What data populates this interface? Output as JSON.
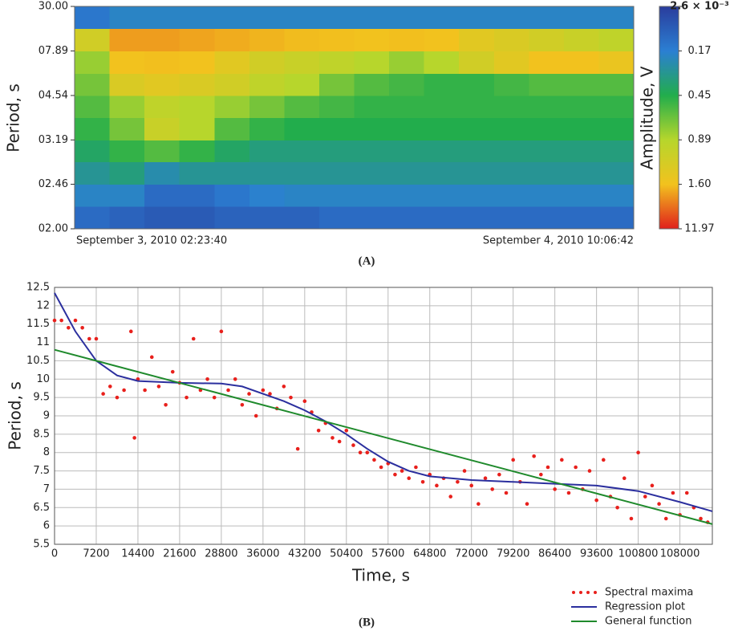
{
  "chart_data": [
    {
      "type": "heatmap",
      "panel": "(A)",
      "ylabel": "Period, s",
      "yscale": "reciprocal",
      "ylim": [
        2,
        30
      ],
      "yticks": [
        {
          "value": 30,
          "label": "30.00"
        },
        {
          "value": 7.89,
          "label": "07.89"
        },
        {
          "value": 4.54,
          "label": "04.54"
        },
        {
          "value": 3.19,
          "label": "03.19"
        },
        {
          "value": 2.46,
          "label": "02.46"
        },
        {
          "value": 2,
          "label": "02.00"
        }
      ],
      "x_start": "September 3, 2010 02:23:40",
      "x_end": "September 4, 2010 10:06:42",
      "ybins": [
        2,
        2.21,
        2.46,
        2.78,
        3.19,
        3.75,
        4.54,
        5.76,
        7.89,
        12.5,
        30
      ],
      "z": [
        [
          0.12,
          0.1,
          0.08,
          0.08,
          0.1,
          0.1,
          0.1,
          0.12,
          0.12,
          0.12,
          0.12,
          0.12,
          0.12,
          0.12,
          0.12,
          0.12
        ],
        [
          0.2,
          0.2,
          0.12,
          0.12,
          0.15,
          0.18,
          0.2,
          0.2,
          0.2,
          0.2,
          0.2,
          0.2,
          0.2,
          0.2,
          0.2,
          0.2
        ],
        [
          0.3,
          0.35,
          0.25,
          0.3,
          0.3,
          0.3,
          0.3,
          0.3,
          0.3,
          0.3,
          0.3,
          0.3,
          0.3,
          0.3,
          0.3,
          0.3
        ],
        [
          0.4,
          0.5,
          0.6,
          0.5,
          0.4,
          0.35,
          0.35,
          0.35,
          0.35,
          0.35,
          0.35,
          0.35,
          0.35,
          0.35,
          0.35,
          0.35
        ],
        [
          0.5,
          0.7,
          1.1,
          0.9,
          0.6,
          0.5,
          0.45,
          0.45,
          0.45,
          0.45,
          0.45,
          0.45,
          0.45,
          0.45,
          0.45,
          0.45
        ],
        [
          0.6,
          0.8,
          1.0,
          0.9,
          0.8,
          0.7,
          0.6,
          0.55,
          0.5,
          0.5,
          0.5,
          0.5,
          0.5,
          0.5,
          0.5,
          0.5
        ],
        [
          0.7,
          1.3,
          1.4,
          1.3,
          1.2,
          1.0,
          0.9,
          0.7,
          0.6,
          0.55,
          0.5,
          0.5,
          0.55,
          0.6,
          0.6,
          0.6
        ],
        [
          0.8,
          1.6,
          1.8,
          1.6,
          1.4,
          1.2,
          1.1,
          1.0,
          0.9,
          0.8,
          0.9,
          1.2,
          1.4,
          1.6,
          1.6,
          1.5
        ],
        [
          1.2,
          4,
          4,
          3.5,
          3,
          2.5,
          2,
          1.8,
          1.6,
          1.8,
          1.6,
          1.4,
          1.3,
          1.2,
          1.1,
          1.0
        ],
        [
          0.15,
          0.2,
          0.2,
          0.2,
          0.2,
          0.2,
          0.2,
          0.2,
          0.2,
          0.2,
          0.2,
          0.2,
          0.2,
          0.2,
          0.2,
          0.2
        ]
      ],
      "colorbar": {
        "label": "Amplitude, V",
        "ticks": [
          {
            "value": 0.0026,
            "label": "2.6 × 10⁻³"
          },
          0.17,
          0.45,
          0.89,
          {
            "value": 1.6,
            "label": "1.60"
          },
          11.97
        ],
        "colors": [
          "#2a3c9c",
          "#2b7fd3",
          "#22ad4c",
          "#b6d62c",
          "#f2c21e",
          "#e0201c"
        ]
      }
    },
    {
      "type": "scatter",
      "panel": "(B)",
      "xlabel": "Time, s",
      "ylabel": "Period, s",
      "xlim": [
        0,
        113600
      ],
      "ylim": [
        5.5,
        12.5
      ],
      "grid": true,
      "legend": "below-right",
      "xticks": [
        0,
        7200,
        14400,
        21600,
        28800,
        36000,
        43200,
        50400,
        57600,
        64800,
        72000,
        79200,
        86400,
        93600,
        100800,
        108000
      ],
      "yticks": [
        5.5,
        6,
        6.5,
        7,
        7.5,
        8,
        8.5,
        9,
        9.5,
        10,
        10.5,
        11,
        11.5,
        12,
        12.5
      ],
      "series": [
        {
          "name": "Spectral maxima",
          "color": "#e8201c",
          "mode": "markers",
          "x": [
            0,
            1200,
            2400,
            3600,
            4800,
            6000,
            7200,
            8400,
            9600,
            10800,
            12000,
            13200,
            13800,
            14400,
            15600,
            16800,
            18000,
            19200,
            20400,
            21600,
            22800,
            24000,
            25200,
            26400,
            27600,
            28800,
            30000,
            31200,
            32400,
            33600,
            34800,
            36000,
            37200,
            38400,
            39600,
            40800,
            42000,
            43200,
            44400,
            45600,
            46800,
            48000,
            49200,
            50400,
            51600,
            52800,
            54000,
            55200,
            56400,
            57600,
            58800,
            60000,
            61200,
            62400,
            63600,
            64800,
            66000,
            67200,
            68400,
            69600,
            70800,
            72000,
            73200,
            74400,
            75600,
            76800,
            78000,
            79200,
            80400,
            81600,
            82800,
            84000,
            85200,
            86400,
            87600,
            88800,
            90000,
            91200,
            92400,
            93600,
            94800,
            96000,
            97200,
            98400,
            99600,
            100800,
            102000,
            103200,
            104400,
            105600,
            106800,
            108000,
            109200,
            110400,
            111600,
            112800
          ],
          "values": [
            11.6,
            11.6,
            11.4,
            11.6,
            11.4,
            11.1,
            11.1,
            9.6,
            9.8,
            9.5,
            9.7,
            11.3,
            8.4,
            10.0,
            9.7,
            10.6,
            9.8,
            9.3,
            10.2,
            9.9,
            9.5,
            11.1,
            9.7,
            10.0,
            9.5,
            11.3,
            9.7,
            10.0,
            9.3,
            9.6,
            9.0,
            9.7,
            9.6,
            9.2,
            9.8,
            9.5,
            8.1,
            9.4,
            9.1,
            8.6,
            8.8,
            8.4,
            8.3,
            8.6,
            8.2,
            8.0,
            8.0,
            7.8,
            7.6,
            7.7,
            7.4,
            7.5,
            7.3,
            7.6,
            7.2,
            7.4,
            7.1,
            7.3,
            6.8,
            7.2,
            7.5,
            7.1,
            6.6,
            7.3,
            7.0,
            7.4,
            6.9,
            7.8,
            7.2,
            6.6,
            7.9,
            7.4,
            7.6,
            7.0,
            7.8,
            6.9,
            7.6,
            7.0,
            7.5,
            6.7,
            7.8,
            6.8,
            6.5,
            7.3,
            6.2,
            8.0,
            6.8,
            7.1,
            6.6,
            6.2,
            6.9,
            6.3,
            6.9,
            6.5,
            6.2,
            6.1
          ]
        },
        {
          "name": "Regression plot",
          "color": "#2b2f9e",
          "mode": "line",
          "x": [
            0,
            3600,
            7200,
            10800,
            14400,
            21600,
            28800,
            32400,
            36000,
            39600,
            43200,
            46800,
            50400,
            54000,
            57600,
            61200,
            64800,
            72000,
            79200,
            86400,
            93600,
            100800,
            108000,
            113600
          ],
          "values": [
            12.35,
            11.3,
            10.5,
            10.1,
            9.95,
            9.9,
            9.88,
            9.8,
            9.6,
            9.4,
            9.15,
            8.85,
            8.5,
            8.1,
            7.75,
            7.5,
            7.35,
            7.25,
            7.2,
            7.15,
            7.1,
            6.95,
            6.65,
            6.4
          ]
        },
        {
          "name": "General function",
          "color": "#1f8a2c",
          "mode": "line",
          "x": [
            0,
            113600
          ],
          "values": [
            10.8,
            6.05
          ]
        }
      ]
    }
  ]
}
